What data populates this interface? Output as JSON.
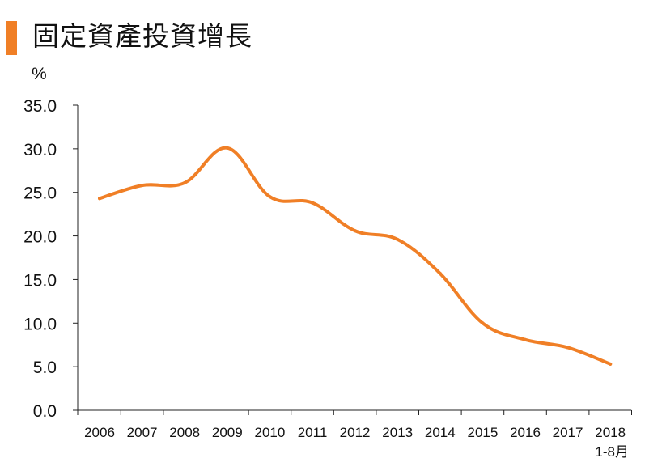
{
  "title": "固定資產投資增長",
  "chart_data": {
    "type": "line",
    "title": "固定資產投資增長",
    "ylabel": "%",
    "xlabel": "",
    "ylim": [
      0,
      35
    ],
    "y_ticks": [
      "0.0",
      "5.0",
      "10.0",
      "15.0",
      "20.0",
      "25.0",
      "30.0",
      "35.0"
    ],
    "x": [
      "2006",
      "2007",
      "2008",
      "2009",
      "2010",
      "2011",
      "2012",
      "2013",
      "2014",
      "2015",
      "2016",
      "2017",
      "2018"
    ],
    "x_sublabels": {
      "2018": "1-8月"
    },
    "series": [
      {
        "name": "",
        "values": [
          24.3,
          25.8,
          26.1,
          30.1,
          24.5,
          23.8,
          20.6,
          19.6,
          15.7,
          10.0,
          8.1,
          7.2,
          5.3
        ],
        "color": "#f07f26"
      }
    ],
    "grid": false,
    "legend": "none"
  }
}
